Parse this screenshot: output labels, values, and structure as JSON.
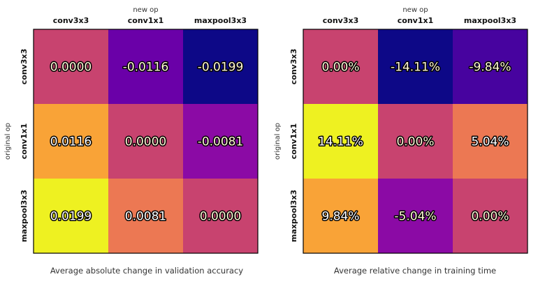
{
  "chart_data": [
    {
      "type": "heatmap",
      "x_axis_label": "new op",
      "y_axis_label": "original op",
      "columns": [
        "conv3x3",
        "conv1x1",
        "maxpool3x3"
      ],
      "rows": [
        "conv3x3",
        "conv1x1",
        "maxpool3x3"
      ],
      "values": [
        [
          0.0,
          -0.0116,
          -0.0199
        ],
        [
          0.0116,
          0.0,
          -0.0081
        ],
        [
          0.0199,
          0.0081,
          0.0
        ]
      ],
      "labels": [
        [
          "0.0000",
          "-0.0116",
          "-0.0199"
        ],
        [
          "0.0116",
          "0.0000",
          "-0.0081"
        ],
        [
          "0.0199",
          "0.0081",
          "0.0000"
        ]
      ],
      "colors": [
        [
          "#c8436f",
          "#6a00a8",
          "#0d0887"
        ],
        [
          "#f9a337",
          "#c8436f",
          "#8b0aa5"
        ],
        [
          "#eef121",
          "#ec7853",
          "#c8436f"
        ]
      ],
      "colormap": "plasma",
      "caption": "Average absolute change in validation accuracy"
    },
    {
      "type": "heatmap",
      "x_axis_label": "new op",
      "y_axis_label": "original op",
      "columns": [
        "conv3x3",
        "conv1x1",
        "maxpool3x3"
      ],
      "rows": [
        "conv3x3",
        "conv1x1",
        "maxpool3x3"
      ],
      "values": [
        [
          0.0,
          -14.11,
          -9.84
        ],
        [
          14.11,
          0.0,
          5.04
        ],
        [
          9.84,
          -5.04,
          0.0
        ]
      ],
      "labels": [
        [
          "0.00%",
          "-14.11%",
          "-9.84%"
        ],
        [
          "14.11%",
          "0.00%",
          "5.04%"
        ],
        [
          "9.84%",
          "-5.04%",
          "0.00%"
        ]
      ],
      "colors": [
        [
          "#c8436f",
          "#0d0887",
          "#47039f"
        ],
        [
          "#eef121",
          "#c8436f",
          "#ec7853"
        ],
        [
          "#f9a337",
          "#8b0aa5",
          "#c8436f"
        ]
      ],
      "colormap": "plasma",
      "caption": "Average relative change in training time"
    }
  ]
}
